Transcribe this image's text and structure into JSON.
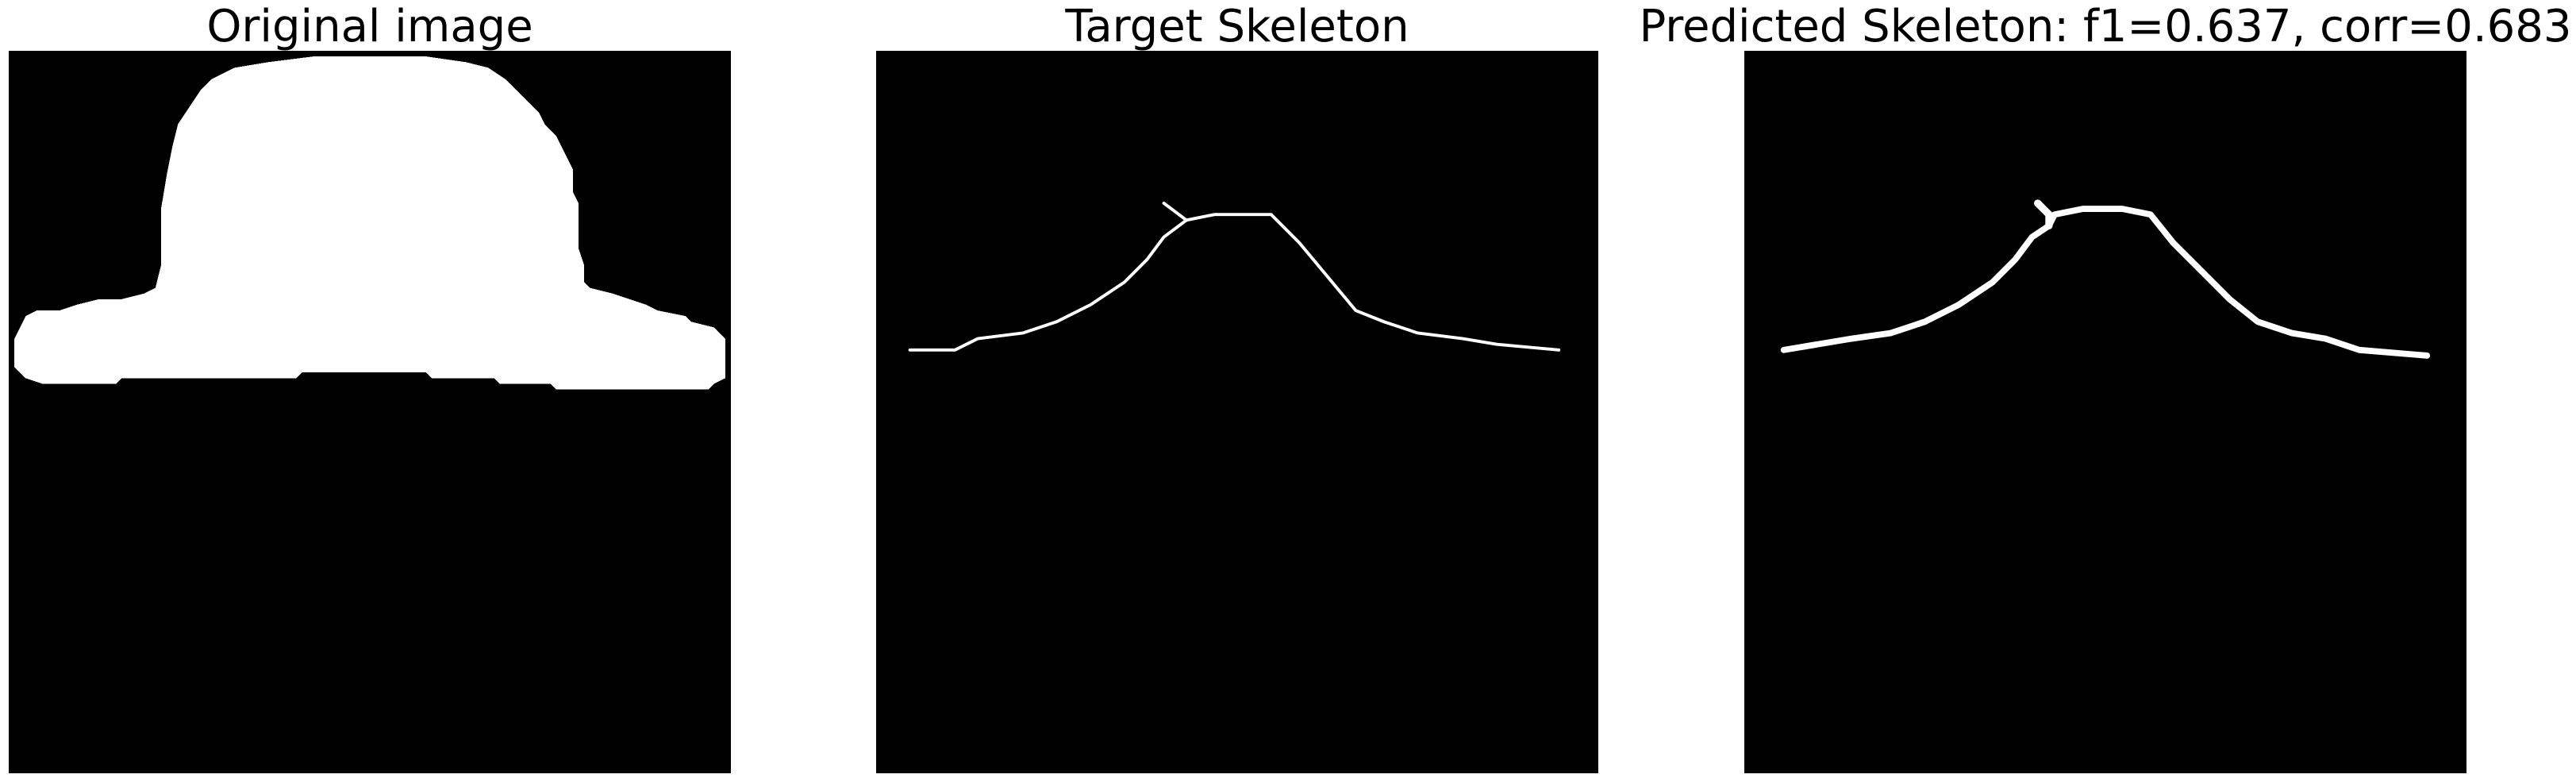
{
  "panels": [
    {
      "title": "Original image"
    },
    {
      "title": "Target Skeleton"
    },
    {
      "title": "Predicted Skeleton: f1=0.637, corr=0.683"
    }
  ],
  "colors": {
    "background": "#ffffff",
    "image_background": "#000000",
    "foreground": "#ffffff"
  }
}
